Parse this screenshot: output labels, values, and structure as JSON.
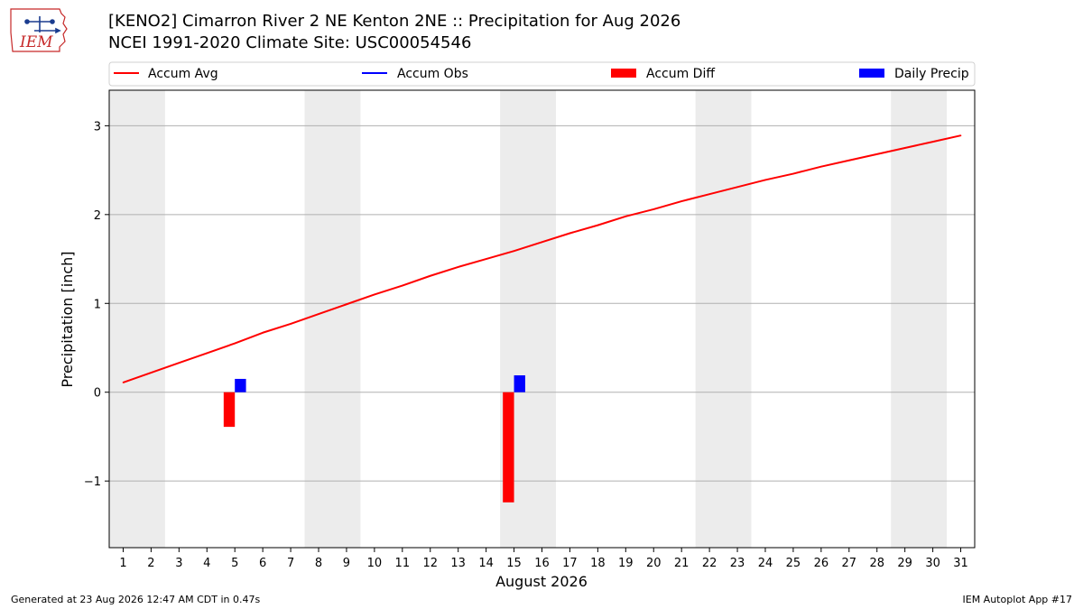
{
  "header": {
    "title": "[KENO2] Cimarron River 2 NE Kenton 2NE :: Precipitation for Aug 2026",
    "subtitle": "NCEI 1991-2020 Climate Site: USC00054546",
    "logo_text": "IEM"
  },
  "footer": {
    "generated": "Generated at 23 Aug 2026 12:47 AM CDT in 0.47s",
    "app": "IEM Autoplot App #17"
  },
  "colors": {
    "accum_avg": "#ff0000",
    "accum_obs": "#0000ff",
    "accum_diff": "#ff0000",
    "daily_precip": "#0000ff",
    "weekend_shade": "#ececec",
    "grid": "#b0b0b0"
  },
  "chart_data": {
    "type": "line",
    "xlabel": "August 2026",
    "ylabel": "Precipitation [inch]",
    "xlim": [
      0.5,
      31.5
    ],
    "ylim": [
      -1.75,
      3.4
    ],
    "yticks": [
      -1,
      0,
      1,
      2,
      3
    ],
    "ytick_labels": [
      "−1",
      "0",
      "1",
      "2",
      "3"
    ],
    "grid": "horizontal",
    "legend_placement": "top",
    "x": [
      1,
      2,
      3,
      4,
      5,
      6,
      7,
      8,
      9,
      10,
      11,
      12,
      13,
      14,
      15,
      16,
      17,
      18,
      19,
      20,
      21,
      22,
      23,
      24,
      25,
      26,
      27,
      28,
      29,
      30,
      31
    ],
    "weekend_days": [
      1,
      2,
      8,
      9,
      15,
      16,
      22,
      23,
      29,
      30
    ],
    "legend": [
      {
        "name": "Accum Avg",
        "kind": "line",
        "color": "#ff0000"
      },
      {
        "name": "Accum Obs",
        "kind": "line",
        "color": "#0000ff"
      },
      {
        "name": "Accum Diff",
        "kind": "bar",
        "color": "#ff0000"
      },
      {
        "name": "Daily Precip",
        "kind": "bar",
        "color": "#0000ff"
      }
    ],
    "series": [
      {
        "name": "Accum Avg",
        "type": "line",
        "color": "#ff0000",
        "values": [
          0.11,
          0.22,
          0.33,
          0.44,
          0.55,
          0.67,
          0.77,
          0.88,
          0.99,
          1.1,
          1.2,
          1.31,
          1.41,
          1.5,
          1.59,
          1.69,
          1.79,
          1.88,
          1.98,
          2.06,
          2.15,
          2.23,
          2.31,
          2.39,
          2.46,
          2.54,
          2.61,
          2.68,
          2.75,
          2.82,
          2.89
        ]
      },
      {
        "name": "Accum Diff",
        "type": "bar",
        "color": "#ff0000",
        "points": [
          {
            "x": 5,
            "value": -0.39
          },
          {
            "x": 15,
            "value": -1.24
          }
        ]
      },
      {
        "name": "Daily Precip",
        "type": "bar",
        "color": "#0000ff",
        "points": [
          {
            "x": 5,
            "value": 0.15
          },
          {
            "x": 15,
            "value": 0.19
          }
        ]
      }
    ]
  }
}
